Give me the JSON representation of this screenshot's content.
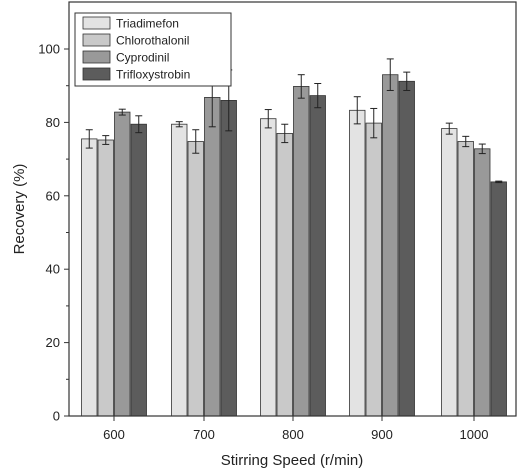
{
  "chart_data": {
    "type": "bar",
    "xlabel": "Stirring Speed (r/min)",
    "ylabel": "Recovery (%)",
    "categories": [
      "600",
      "700",
      "800",
      "900",
      "1000"
    ],
    "ylim": [
      0,
      100
    ],
    "yticks": [
      0,
      20,
      40,
      60,
      80,
      100
    ],
    "legend_position": "top-left",
    "grid": false,
    "series": [
      {
        "name": "Triadimefon",
        "color": "#e3e3e3",
        "values": [
          75.5,
          79.5,
          81.0,
          83.3,
          78.3
        ],
        "errors": [
          2.5,
          0.7,
          2.5,
          3.7,
          1.5
        ]
      },
      {
        "name": "Chlorothalonil",
        "color": "#c9c9c9",
        "values": [
          75.2,
          74.8,
          77.0,
          79.8,
          74.8
        ],
        "errors": [
          1.2,
          3.2,
          2.5,
          4.0,
          1.4
        ]
      },
      {
        "name": "Cyprodinil",
        "color": "#999999",
        "values": [
          82.8,
          86.8,
          89.8,
          93.0,
          72.8
        ],
        "errors": [
          0.8,
          8.0,
          3.2,
          4.3,
          1.3
        ]
      },
      {
        "name": "Trifloxystrobin",
        "color": "#5c5c5c",
        "values": [
          79.5,
          86.0,
          87.3,
          91.2,
          63.8
        ],
        "errors": [
          2.3,
          8.3,
          3.3,
          2.5,
          0.2
        ]
      }
    ]
  }
}
